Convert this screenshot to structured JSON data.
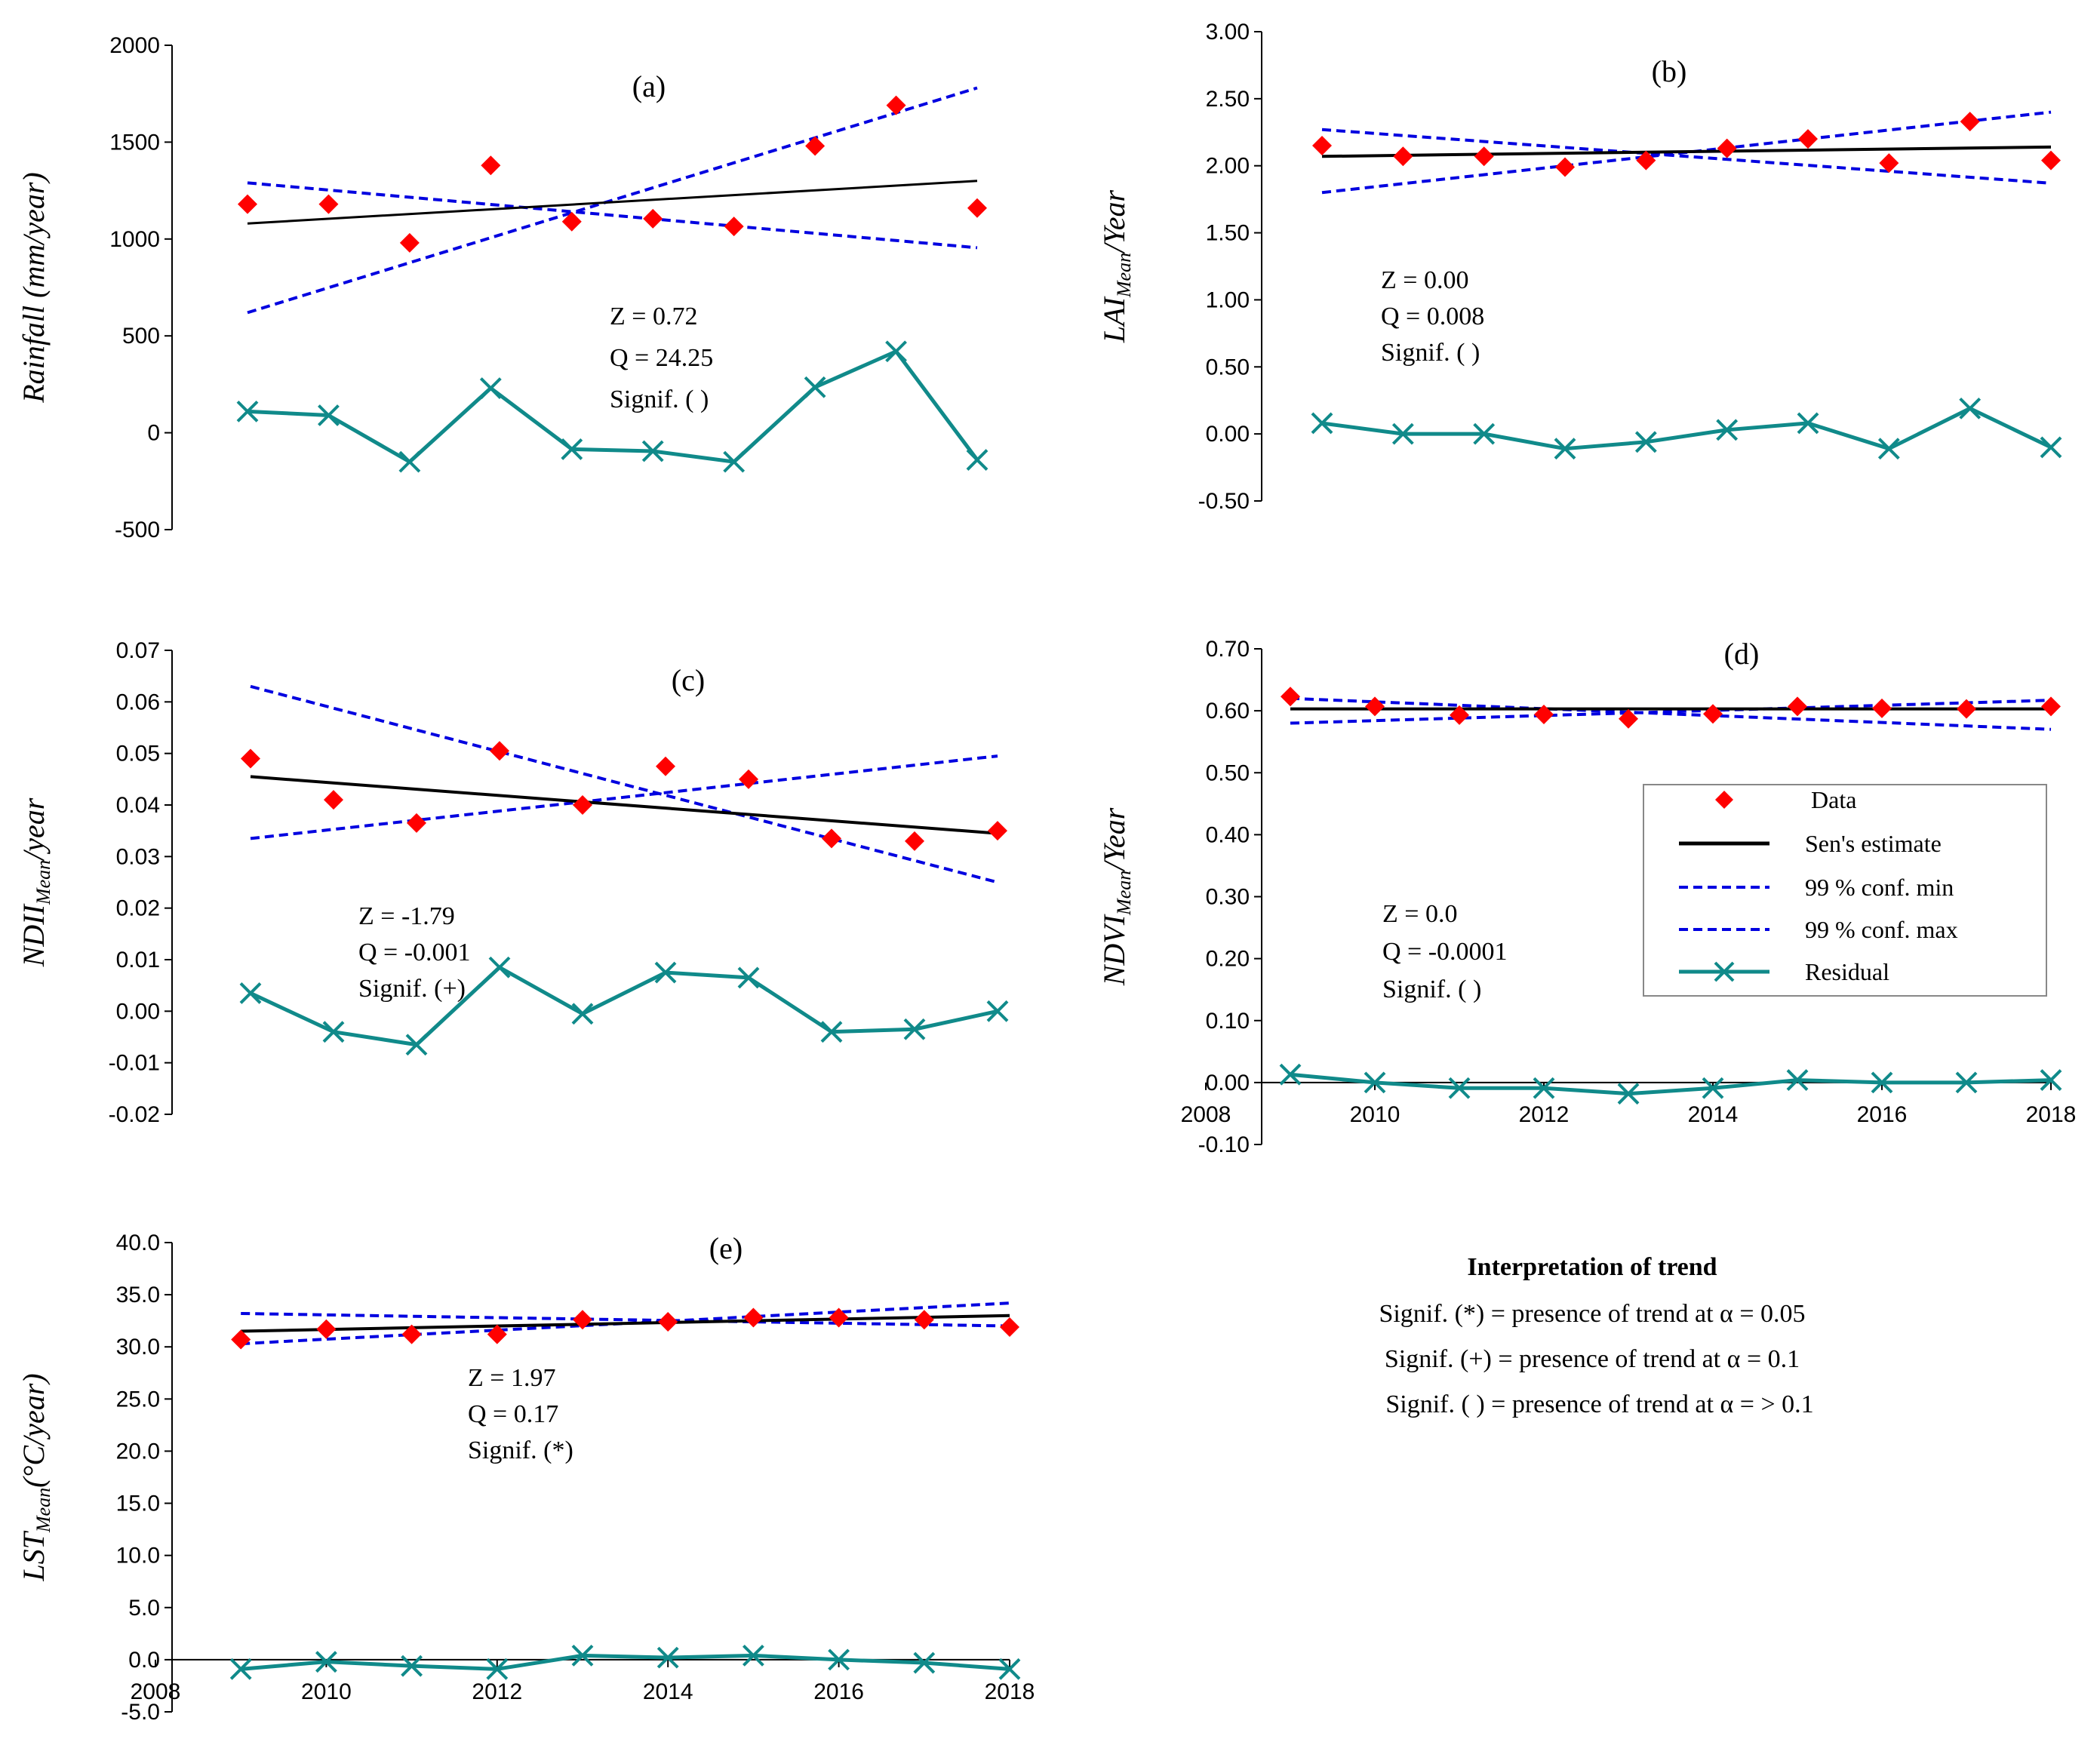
{
  "colors": {
    "data": "#ff0000",
    "sen": "#000000",
    "conf": "#0000e0",
    "residual": "#108a8a",
    "axis": "#000000"
  },
  "legend": {
    "data": "Data",
    "sen": "Sen's estimate",
    "conf_min": "99 % conf. min",
    "conf_max": "99 % conf. max",
    "residual": "Residual"
  },
  "interpretation": {
    "title": "Interpretation of trend",
    "lines": [
      "Signif. (*) = presence of trend at α = 0.05",
      "Signif. (+) = presence of trend at α = 0.1",
      "Signif. ( ) = presence of trend at α = > 0.1"
    ]
  },
  "chart_data": [
    {
      "id": "a",
      "type": "line",
      "label": "(a)",
      "ylabel_main": "Rainfall (mm/year)",
      "ylabel_sub": "",
      "ylim": [
        -500,
        2000
      ],
      "yticks": [
        "2000",
        "1500",
        "1000",
        "500",
        "0",
        "-500"
      ],
      "ytick_values": [
        2000,
        1500,
        1000,
        500,
        0,
        -500
      ],
      "xlim": [
        2009,
        2018
      ],
      "show_xaxis": false,
      "x": [
        2009,
        2010,
        2011,
        2012,
        2013,
        2014,
        2015,
        2016,
        2017,
        2018
      ],
      "data": [
        1180,
        1180,
        980,
        1380,
        1090,
        1105,
        1065,
        1480,
        1690,
        1160
      ],
      "sen": [
        [
          2009,
          1080
        ],
        [
          2018,
          1300
        ]
      ],
      "conf_min": [
        [
          2009,
          1290
        ],
        [
          2018,
          955
        ]
      ],
      "conf_max": [
        [
          2009,
          620
        ],
        [
          2018,
          1780
        ]
      ],
      "residual": [
        110,
        90,
        -150,
        230,
        -85,
        -95,
        -150,
        235,
        420,
        -140
      ],
      "stats": [
        "Z = 0.72",
        "Q = 24.25",
        "Signif. ( )"
      ]
    },
    {
      "id": "b",
      "type": "line",
      "label": "(b)",
      "ylabel_main": "LAI",
      "ylabel_sub": "Mean",
      "ylabel_tail": "/Year",
      "ylim": [
        -0.5,
        3.0
      ],
      "yticks": [
        "3.00",
        "2.50",
        "2.00",
        "1.50",
        "1.00",
        "0.50",
        "0.00",
        "-0.50"
      ],
      "ytick_values": [
        3,
        2.5,
        2,
        1.5,
        1,
        0.5,
        0,
        -0.5
      ],
      "xlim": [
        2009,
        2018
      ],
      "show_xaxis": false,
      "x": [
        2009,
        2010,
        2011,
        2012,
        2013,
        2014,
        2015,
        2016,
        2017,
        2018
      ],
      "data": [
        2.15,
        2.07,
        2.07,
        1.99,
        2.04,
        2.13,
        2.2,
        2.02,
        2.33,
        2.04
      ],
      "sen": [
        [
          2009,
          2.07
        ],
        [
          2018,
          2.14
        ]
      ],
      "conf_min": [
        [
          2009,
          2.27
        ],
        [
          2018,
          1.87
        ]
      ],
      "conf_max": [
        [
          2009,
          1.8
        ],
        [
          2018,
          2.4
        ]
      ],
      "residual": [
        0.08,
        0.0,
        0.0,
        -0.11,
        -0.06,
        0.03,
        0.08,
        -0.11,
        0.19,
        -0.1
      ],
      "stats": [
        "Z = 0.00",
        "Q = 0.008",
        "Signif. ( )"
      ]
    },
    {
      "id": "c",
      "type": "line",
      "label": "(c)",
      "ylabel_main": "NDII",
      "ylabel_sub": "Mean",
      "ylabel_tail": "/year",
      "ylim": [
        -0.02,
        0.07
      ],
      "yticks": [
        "0.07",
        "0.06",
        "0.05",
        "0.04",
        "0.03",
        "0.02",
        "0.01",
        "0.00",
        "-0.01",
        "-0.02"
      ],
      "ytick_values": [
        0.07,
        0.06,
        0.05,
        0.04,
        0.03,
        0.02,
        0.01,
        0,
        -0.01,
        -0.02
      ],
      "xlim": [
        2009,
        2018
      ],
      "show_xaxis": false,
      "x": [
        2009,
        2010,
        2011,
        2012,
        2013,
        2014,
        2015,
        2016,
        2017,
        2018
      ],
      "data": [
        0.049,
        0.041,
        0.0365,
        0.0505,
        0.04,
        0.0475,
        0.045,
        0.0335,
        0.033,
        0.035
      ],
      "sen": [
        [
          2009,
          0.0455
        ],
        [
          2018,
          0.0345
        ]
      ],
      "conf_min": [
        [
          2009,
          0.063
        ],
        [
          2018,
          0.025
        ]
      ],
      "conf_max": [
        [
          2009,
          0.0335
        ],
        [
          2018,
          0.0495
        ]
      ],
      "residual": [
        0.0035,
        -0.004,
        -0.0065,
        0.0085,
        -0.0005,
        0.0075,
        0.0065,
        -0.004,
        -0.0035,
        0.0
      ],
      "stats": [
        "Z = -1.79",
        "Q = -0.001",
        "Signif. (+)"
      ]
    },
    {
      "id": "d",
      "type": "line",
      "label": "(d)",
      "ylabel_main": "NDVI",
      "ylabel_sub": "Mean",
      "ylabel_tail": "/Year",
      "ylim": [
        -0.1,
        0.7
      ],
      "yticks": [
        "0.70",
        "0.60",
        "0.50",
        "0.40",
        "0.30",
        "0.20",
        "0.10",
        "0.00",
        "-0.10"
      ],
      "ytick_values": [
        0.7,
        0.6,
        0.5,
        0.4,
        0.3,
        0.2,
        0.1,
        0,
        -0.1
      ],
      "xlim": [
        2008,
        2018
      ],
      "show_xaxis": true,
      "xticks": [
        "2008",
        "2010",
        "2012",
        "2014",
        "2016",
        "2018"
      ],
      "xtick_values": [
        2008,
        2010,
        2012,
        2014,
        2016,
        2018
      ],
      "x": [
        2009,
        2010,
        2011,
        2012,
        2013,
        2014,
        2015,
        2016,
        2017,
        2018
      ],
      "data": [
        0.623,
        0.607,
        0.593,
        0.594,
        0.587,
        0.595,
        0.607,
        0.604,
        0.603,
        0.607
      ],
      "sen": [
        [
          2009,
          0.603
        ],
        [
          2018,
          0.603
        ]
      ],
      "conf_min": [
        [
          2009,
          0.62
        ],
        [
          2018,
          0.57
        ]
      ],
      "conf_max": [
        [
          2009,
          0.58
        ],
        [
          2018,
          0.617
        ]
      ],
      "residual": [
        0.013,
        0.0,
        -0.009,
        -0.009,
        -0.018,
        -0.009,
        0.004,
        0.0,
        0.0,
        0.004
      ],
      "stats": [
        "Z = 0.0",
        "Q = -0.0001",
        "Signif. ( )"
      ]
    },
    {
      "id": "e",
      "type": "line",
      "label": "(e)",
      "ylabel_main": "LST",
      "ylabel_sub": "Mean",
      "ylabel_tail": "(°C/year)",
      "ylim": [
        -5.0,
        40.0
      ],
      "yticks": [
        "40.0",
        "35.0",
        "30.0",
        "25.0",
        "20.0",
        "15.0",
        "10.0",
        "5.0",
        "0.0",
        "-5.0"
      ],
      "ytick_values": [
        40,
        35,
        30,
        25,
        20,
        15,
        10,
        5,
        0,
        -5
      ],
      "xlim": [
        2008,
        2018
      ],
      "show_xaxis": true,
      "xticks": [
        "2008",
        "2010",
        "2012",
        "2014",
        "2016",
        "2018"
      ],
      "xtick_values": [
        2008,
        2010,
        2012,
        2014,
        2016,
        2018
      ],
      "x": [
        2009,
        2010,
        2011,
        2012,
        2013,
        2014,
        2015,
        2016,
        2017,
        2018
      ],
      "data": [
        30.7,
        31.7,
        31.2,
        31.2,
        32.6,
        32.4,
        32.8,
        32.8,
        32.6,
        31.9
      ],
      "sen": [
        [
          2009,
          31.5
        ],
        [
          2018,
          33.0
        ]
      ],
      "conf_min": [
        [
          2009,
          33.2
        ],
        [
          2018,
          32.0
        ]
      ],
      "conf_max": [
        [
          2009,
          30.3
        ],
        [
          2018,
          34.2
        ]
      ],
      "residual": [
        -0.9,
        -0.2,
        -0.6,
        -0.9,
        0.4,
        0.2,
        0.4,
        0.0,
        -0.3,
        -0.9
      ],
      "stats": [
        "Z = 1.97",
        "Q = 0.17",
        "Signif. (*)"
      ]
    }
  ]
}
